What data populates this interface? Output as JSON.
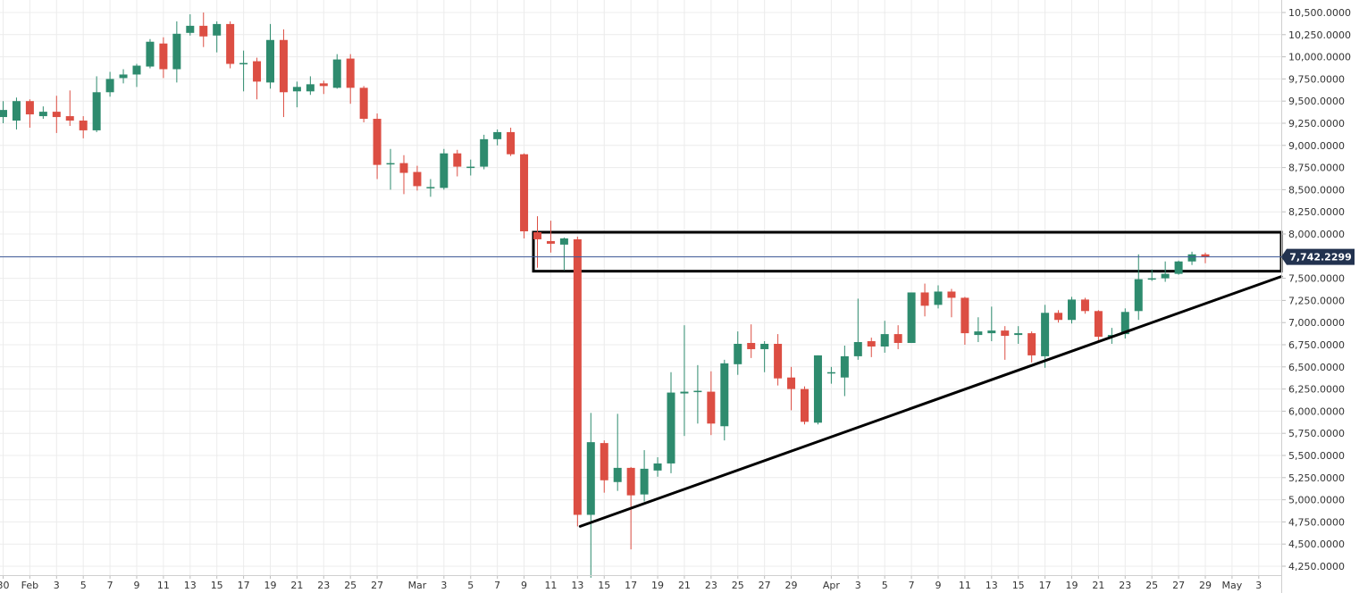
{
  "chart_data": {
    "type": "candlestick",
    "title": "",
    "xlabel": "",
    "ylabel": "",
    "ylim": [
      4150,
      10600
    ],
    "grid": true,
    "colors": {
      "up": "#2e8b6e",
      "down": "#dc4e43",
      "price_line": "#3f5a9a",
      "price_label_bg": "#22324f",
      "annotation": "#000000"
    },
    "current_price": "7,742.2299",
    "y_ticks": [
      {
        "value": 10500,
        "label": "10,500.0000"
      },
      {
        "value": 10250,
        "label": "10,250.0000"
      },
      {
        "value": 10000,
        "label": "10,000.0000"
      },
      {
        "value": 9750,
        "label": "9,750.0000"
      },
      {
        "value": 9500,
        "label": "9,500.0000"
      },
      {
        "value": 9250,
        "label": "9,250.0000"
      },
      {
        "value": 9000,
        "label": "9,000.0000"
      },
      {
        "value": 8750,
        "label": "8,750.0000"
      },
      {
        "value": 8500,
        "label": "8,500.0000"
      },
      {
        "value": 8250,
        "label": "8,250.0000"
      },
      {
        "value": 8000,
        "label": "8,000.0000"
      },
      {
        "value": 7750,
        "label": "7,750.0000"
      },
      {
        "value": 7500,
        "label": "7,500.0000"
      },
      {
        "value": 7250,
        "label": "7,250.0000"
      },
      {
        "value": 7000,
        "label": "7,000.0000"
      },
      {
        "value": 6750,
        "label": "6,750.0000"
      },
      {
        "value": 6500,
        "label": "6,500.0000"
      },
      {
        "value": 6250,
        "label": "6,250.0000"
      },
      {
        "value": 6000,
        "label": "6,000.0000"
      },
      {
        "value": 5750,
        "label": "5,750.0000"
      },
      {
        "value": 5500,
        "label": "5,500.0000"
      },
      {
        "value": 5250,
        "label": "5,250.0000"
      },
      {
        "value": 5000,
        "label": "5,000.0000"
      },
      {
        "value": 4750,
        "label": "4,750.0000"
      },
      {
        "value": 4500,
        "label": "4,500.0000"
      },
      {
        "value": 4250,
        "label": "4,250.0000"
      }
    ],
    "x_ticks": [
      {
        "i": 0,
        "label": "30"
      },
      {
        "i": 2,
        "label": "Feb"
      },
      {
        "i": 4,
        "label": "3"
      },
      {
        "i": 6,
        "label": "5"
      },
      {
        "i": 8,
        "label": "7"
      },
      {
        "i": 10,
        "label": "9"
      },
      {
        "i": 12,
        "label": "11"
      },
      {
        "i": 14,
        "label": "13"
      },
      {
        "i": 16,
        "label": "15"
      },
      {
        "i": 18,
        "label": "17"
      },
      {
        "i": 20,
        "label": "19"
      },
      {
        "i": 22,
        "label": "21"
      },
      {
        "i": 24,
        "label": "23"
      },
      {
        "i": 26,
        "label": "25"
      },
      {
        "i": 28,
        "label": "27"
      },
      {
        "i": 31,
        "label": "Mar"
      },
      {
        "i": 33,
        "label": "3"
      },
      {
        "i": 35,
        "label": "5"
      },
      {
        "i": 37,
        "label": "7"
      },
      {
        "i": 39,
        "label": "9"
      },
      {
        "i": 41,
        "label": "11"
      },
      {
        "i": 43,
        "label": "13"
      },
      {
        "i": 45,
        "label": "15"
      },
      {
        "i": 47,
        "label": "17"
      },
      {
        "i": 49,
        "label": "19"
      },
      {
        "i": 51,
        "label": "21"
      },
      {
        "i": 53,
        "label": "23"
      },
      {
        "i": 55,
        "label": "25"
      },
      {
        "i": 57,
        "label": "27"
      },
      {
        "i": 59,
        "label": "29"
      },
      {
        "i": 62,
        "label": "Apr"
      },
      {
        "i": 64,
        "label": "3"
      },
      {
        "i": 66,
        "label": "5"
      },
      {
        "i": 68,
        "label": "7"
      },
      {
        "i": 70,
        "label": "9"
      },
      {
        "i": 72,
        "label": "11"
      },
      {
        "i": 74,
        "label": "13"
      },
      {
        "i": 76,
        "label": "15"
      },
      {
        "i": 78,
        "label": "17"
      },
      {
        "i": 80,
        "label": "19"
      },
      {
        "i": 82,
        "label": "21"
      },
      {
        "i": 84,
        "label": "23"
      },
      {
        "i": 86,
        "label": "25"
      },
      {
        "i": 88,
        "label": "27"
      },
      {
        "i": 90,
        "label": "29"
      },
      {
        "i": 92,
        "label": "May"
      },
      {
        "i": 94,
        "label": "3"
      }
    ],
    "candles": [
      {
        "o": 9320,
        "h": 9500,
        "l": 9250,
        "c": 9400
      },
      {
        "o": 9280,
        "h": 9540,
        "l": 9180,
        "c": 9500
      },
      {
        "o": 9500,
        "h": 9520,
        "l": 9200,
        "c": 9350
      },
      {
        "o": 9330,
        "h": 9440,
        "l": 9300,
        "c": 9380
      },
      {
        "o": 9380,
        "h": 9560,
        "l": 9140,
        "c": 9320
      },
      {
        "o": 9330,
        "h": 9620,
        "l": 9220,
        "c": 9280
      },
      {
        "o": 9280,
        "h": 9330,
        "l": 9080,
        "c": 9170
      },
      {
        "o": 9170,
        "h": 9780,
        "l": 9150,
        "c": 9600
      },
      {
        "o": 9600,
        "h": 9830,
        "l": 9550,
        "c": 9750
      },
      {
        "o": 9760,
        "h": 9860,
        "l": 9700,
        "c": 9800
      },
      {
        "o": 9800,
        "h": 9920,
        "l": 9660,
        "c": 9900
      },
      {
        "o": 9890,
        "h": 10200,
        "l": 9870,
        "c": 10170
      },
      {
        "o": 10150,
        "h": 10220,
        "l": 9760,
        "c": 9860
      },
      {
        "o": 9860,
        "h": 10400,
        "l": 9710,
        "c": 10260
      },
      {
        "o": 10270,
        "h": 10480,
        "l": 10240,
        "c": 10350
      },
      {
        "o": 10350,
        "h": 10500,
        "l": 10110,
        "c": 10230
      },
      {
        "o": 10240,
        "h": 10400,
        "l": 10050,
        "c": 10370
      },
      {
        "o": 10370,
        "h": 10400,
        "l": 9870,
        "c": 9920
      },
      {
        "o": 9920,
        "h": 10070,
        "l": 9610,
        "c": 9930
      },
      {
        "o": 9950,
        "h": 9990,
        "l": 9520,
        "c": 9720
      },
      {
        "o": 9710,
        "h": 10370,
        "l": 9640,
        "c": 10190
      },
      {
        "o": 10190,
        "h": 10310,
        "l": 9320,
        "c": 9600
      },
      {
        "o": 9610,
        "h": 9720,
        "l": 9430,
        "c": 9660
      },
      {
        "o": 9610,
        "h": 9780,
        "l": 9570,
        "c": 9690
      },
      {
        "o": 9700,
        "h": 9730,
        "l": 9580,
        "c": 9670
      },
      {
        "o": 9650,
        "h": 10030,
        "l": 9640,
        "c": 9970
      },
      {
        "o": 9980,
        "h": 10030,
        "l": 9470,
        "c": 9650
      },
      {
        "o": 9650,
        "h": 9670,
        "l": 9260,
        "c": 9300
      },
      {
        "o": 9300,
        "h": 9360,
        "l": 8620,
        "c": 8780
      },
      {
        "o": 8790,
        "h": 8960,
        "l": 8500,
        "c": 8800
      },
      {
        "o": 8800,
        "h": 8890,
        "l": 8450,
        "c": 8690
      },
      {
        "o": 8700,
        "h": 8770,
        "l": 8490,
        "c": 8540
      },
      {
        "o": 8520,
        "h": 8620,
        "l": 8420,
        "c": 8530
      },
      {
        "o": 8520,
        "h": 8960,
        "l": 8500,
        "c": 8910
      },
      {
        "o": 8910,
        "h": 8950,
        "l": 8650,
        "c": 8760
      },
      {
        "o": 8750,
        "h": 8840,
        "l": 8660,
        "c": 8760
      },
      {
        "o": 8760,
        "h": 9120,
        "l": 8730,
        "c": 9070
      },
      {
        "o": 9070,
        "h": 9180,
        "l": 9000,
        "c": 9150
      },
      {
        "o": 9150,
        "h": 9200,
        "l": 8880,
        "c": 8900
      },
      {
        "o": 8900,
        "h": 8910,
        "l": 7950,
        "c": 8030
      },
      {
        "o": 8020,
        "h": 8200,
        "l": 7620,
        "c": 7940
      },
      {
        "o": 7920,
        "h": 8150,
        "l": 7790,
        "c": 7890
      },
      {
        "o": 7880,
        "h": 7960,
        "l": 7590,
        "c": 7950
      },
      {
        "o": 7940,
        "h": 7970,
        "l": 4700,
        "c": 4830
      },
      {
        "o": 4830,
        "h": 5980,
        "l": 4120,
        "c": 5650
      },
      {
        "o": 5640,
        "h": 5670,
        "l": 5080,
        "c": 5220
      },
      {
        "o": 5200,
        "h": 5970,
        "l": 5100,
        "c": 5360
      },
      {
        "o": 5360,
        "h": 5370,
        "l": 4440,
        "c": 5050
      },
      {
        "o": 5060,
        "h": 5560,
        "l": 4980,
        "c": 5350
      },
      {
        "o": 5330,
        "h": 5480,
        "l": 5260,
        "c": 5410
      },
      {
        "o": 5410,
        "h": 6440,
        "l": 5300,
        "c": 6210
      },
      {
        "o": 6200,
        "h": 6970,
        "l": 5720,
        "c": 6220
      },
      {
        "o": 6220,
        "h": 6520,
        "l": 5860,
        "c": 6230
      },
      {
        "o": 6220,
        "h": 6450,
        "l": 5730,
        "c": 5860
      },
      {
        "o": 5830,
        "h": 6580,
        "l": 5670,
        "c": 6540
      },
      {
        "o": 6530,
        "h": 6900,
        "l": 6410,
        "c": 6760
      },
      {
        "o": 6770,
        "h": 6980,
        "l": 6600,
        "c": 6700
      },
      {
        "o": 6700,
        "h": 6790,
        "l": 6440,
        "c": 6760
      },
      {
        "o": 6760,
        "h": 6870,
        "l": 6290,
        "c": 6370
      },
      {
        "o": 6380,
        "h": 6500,
        "l": 6010,
        "c": 6250
      },
      {
        "o": 6250,
        "h": 6280,
        "l": 5850,
        "c": 5880
      },
      {
        "o": 5870,
        "h": 6630,
        "l": 5850,
        "c": 6630
      },
      {
        "o": 6430,
        "h": 6500,
        "l": 6310,
        "c": 6440
      },
      {
        "o": 6380,
        "h": 6740,
        "l": 6170,
        "c": 6620
      },
      {
        "o": 6620,
        "h": 7270,
        "l": 6580,
        "c": 6780
      },
      {
        "o": 6790,
        "h": 6830,
        "l": 6610,
        "c": 6730
      },
      {
        "o": 6730,
        "h": 7020,
        "l": 6660,
        "c": 6870
      },
      {
        "o": 6870,
        "h": 6970,
        "l": 6700,
        "c": 6770
      },
      {
        "o": 6770,
        "h": 7340,
        "l": 6770,
        "c": 7340
      },
      {
        "o": 7340,
        "h": 7440,
        "l": 7070,
        "c": 7190
      },
      {
        "o": 7200,
        "h": 7420,
        "l": 7160,
        "c": 7350
      },
      {
        "o": 7350,
        "h": 7380,
        "l": 7060,
        "c": 7280
      },
      {
        "o": 7280,
        "h": 7290,
        "l": 6750,
        "c": 6880
      },
      {
        "o": 6860,
        "h": 7060,
        "l": 6780,
        "c": 6900
      },
      {
        "o": 6880,
        "h": 7180,
        "l": 6790,
        "c": 6910
      },
      {
        "o": 6910,
        "h": 6960,
        "l": 6580,
        "c": 6850
      },
      {
        "o": 6860,
        "h": 6960,
        "l": 6760,
        "c": 6880
      },
      {
        "o": 6880,
        "h": 6900,
        "l": 6550,
        "c": 6630
      },
      {
        "o": 6620,
        "h": 7200,
        "l": 6490,
        "c": 7110
      },
      {
        "o": 7110,
        "h": 7140,
        "l": 7000,
        "c": 7030
      },
      {
        "o": 7030,
        "h": 7290,
        "l": 6990,
        "c": 7260
      },
      {
        "o": 7260,
        "h": 7280,
        "l": 7100,
        "c": 7130
      },
      {
        "o": 7130,
        "h": 7140,
        "l": 6780,
        "c": 6840
      },
      {
        "o": 6840,
        "h": 6940,
        "l": 6760,
        "c": 6860
      },
      {
        "o": 6870,
        "h": 7160,
        "l": 6820,
        "c": 7120
      },
      {
        "o": 7130,
        "h": 7770,
        "l": 7030,
        "c": 7490
      },
      {
        "o": 7490,
        "h": 7600,
        "l": 7470,
        "c": 7500
      },
      {
        "o": 7500,
        "h": 7690,
        "l": 7460,
        "c": 7550
      },
      {
        "o": 7550,
        "h": 7700,
        "l": 7540,
        "c": 7690
      },
      {
        "o": 7690,
        "h": 7800,
        "l": 7650,
        "c": 7770
      },
      {
        "o": 7770,
        "h": 7790,
        "l": 7670,
        "c": 7742
      }
    ],
    "annotations": {
      "resistance_box": {
        "i_start": 39.7,
        "i_end": 107,
        "y_top": 8020,
        "y_bottom": 7580
      },
      "support_trendline": {
        "i_start": 43.2,
        "y_start": 4700,
        "i_end": 96.5,
        "y_end": 7520
      }
    }
  }
}
